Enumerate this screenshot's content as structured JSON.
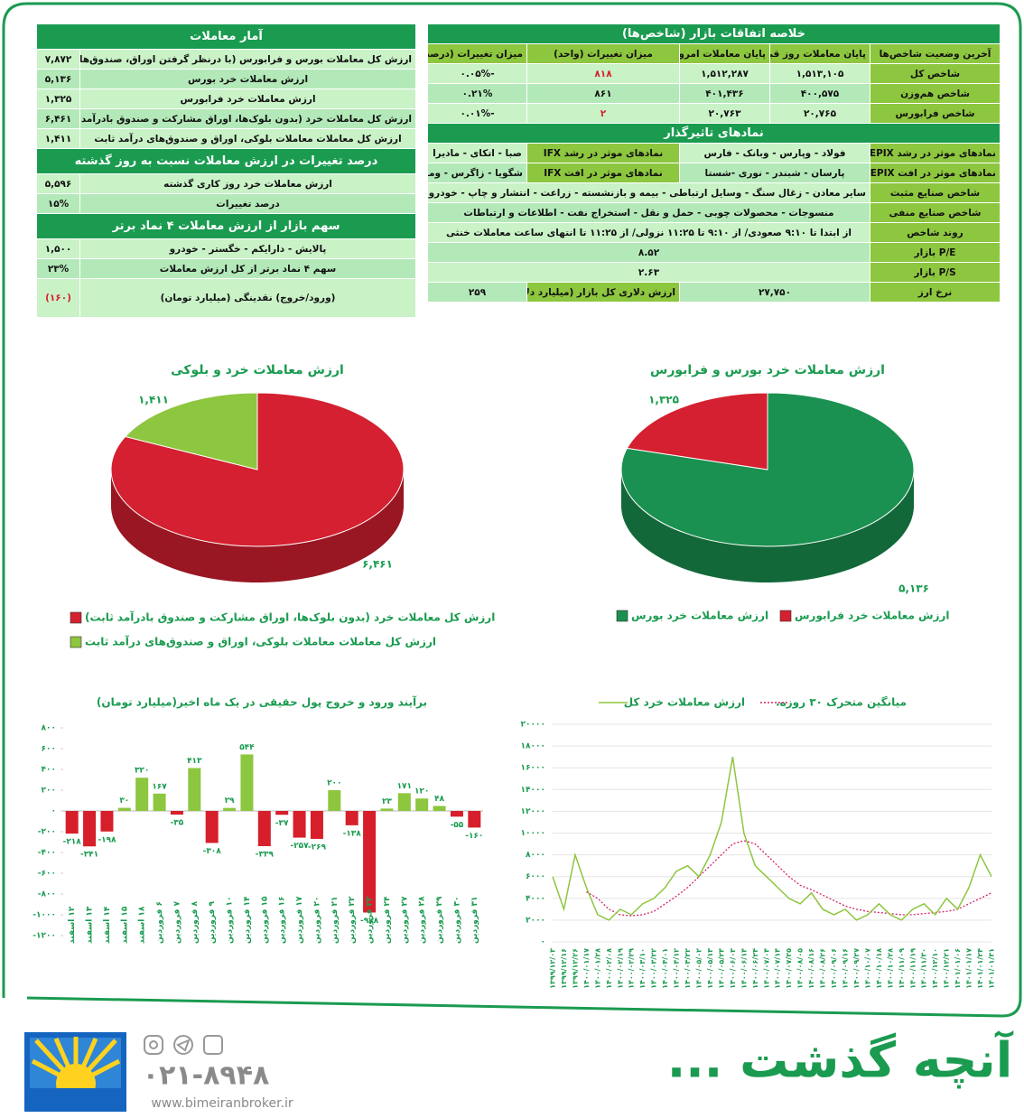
{
  "summary_table": {
    "title": "خلاصه اتفاقات بازار (شاخص‌ها)",
    "header": [
      "آخرین وضعیت شاخص‌ها",
      "پایان معاملات روز قبل",
      "پایان معاملات امروز",
      "میزان تغییرات (واحد)",
      "میزان تغییرات (درصد)"
    ],
    "rows": [
      [
        "شاخص کل",
        "۱,۵۱۳,۱۰۵",
        "۱,۵۱۲,۲۸۷",
        "۸۱۸",
        "-۰.۰۵%"
      ],
      [
        "شاخص هم‌وزن",
        "۴۰۰,۵۷۵",
        "۴۰۱,۴۳۶",
        "۸۶۱",
        "۰.۲۱%"
      ],
      [
        "شاخص فرابورس",
        "۲۰,۷۶۵",
        "۲۰,۷۶۳",
        "۲",
        "-۰.۰۱%"
      ]
    ]
  },
  "influential": {
    "title": "نمادهای تاثیرگذار",
    "rows": [
      [
        "نمادهای موثر در رشد TEPIX",
        "فولاد - وپارس - وبانک - فارس",
        "نمادهای موثر در رشد IFX",
        "صبا - اتکای - مادیرا"
      ],
      [
        "نمادهای موثر در افت TEPIX",
        "پارسان - شبندر - نوری -شستا",
        "نمادهای موثر در افت IFX",
        "شگویا - زاگرس - ومهان"
      ],
      [
        "شاخص صنایع مثبت",
        "سایر معادن - زغال سنگ - وسایل ارتباطی - بیمه و بازنشسته - زراعت - انتشار و چاپ - خودرو"
      ],
      [
        "شاخص صنایع منفی",
        "منسوجات - محصولات چوبی - حمل و نقل - استخراج نفت - اطلاعات و ارتباطات"
      ],
      [
        "روند شاخص",
        "از ابتدا تا ۹:۱۰ صعودی/ از ۹:۱۰ تا ۱۱:۲۵ نزولی/ از ۱۱:۲۵ تا انتهای ساعت معاملات خنثی"
      ],
      [
        "P/E بازار",
        "۸.۵۲"
      ],
      [
        "P/S بازار",
        "۲.۶۳"
      ],
      [
        "نرخ ارز",
        "۲۷,۷۵۰",
        "ارزش دلاری کل بازار (میلیارد دلار)",
        "۲۵۹"
      ]
    ]
  },
  "stats_table": {
    "title": "آمار معاملات",
    "rows": [
      [
        "ارزش کل معاملات بورس و فرابورس (با درنظر گرفتن اوراق، صندوق‌ها و بلوک‌ها)",
        "۷,۸۷۲"
      ],
      [
        "ارزش معاملات خرد بورس",
        "۵,۱۳۶"
      ],
      [
        "ارزش معاملات خرد فرابورس",
        "۱,۳۲۵"
      ],
      [
        "ارزش کل معاملات خرد (بدون بلوک‌ها، اوراق مشارکت و صندوق بادرآمد ثابت)",
        "۶,۴۶۱"
      ],
      [
        "ارزش کل معاملات معاملات بلوکی، اوراق و صندوق‌های درآمد ثابت",
        "۱,۴۱۱"
      ]
    ]
  },
  "change_section": {
    "title": "درصد تغییرات در ارزش معاملات نسبت به روز گذشته",
    "rows": [
      [
        "ارزش معاملات خرد روز کاری گذشته",
        "۵,۵۹۶"
      ],
      [
        "درصد تغییرات",
        "۱۵%"
      ]
    ]
  },
  "top4_section": {
    "title": "سهم بازار از ارزش معاملات ۴ نماد برتر",
    "rows": [
      [
        "پالایش - دارایکم - خگستر - خودرو",
        "۱,۵۰۰"
      ],
      [
        "سهم ۴ نماد برتر از کل ارزش معاملات",
        "۲۳%"
      ],
      [
        "(ورود/خروج) نقدینگی (میلیارد تومان)",
        "(۱۶۰)"
      ]
    ]
  },
  "footer": {
    "title": "آنچه گذشت ...",
    "phone": "۰۲۱-۸۹۴۸",
    "website": "www.bimeiranbroker.ir"
  },
  "chart_data": [
    {
      "type": "pie",
      "title": "ارزش معاملات خرد بورس و فرابورس",
      "series": [
        {
          "name": "ارزش معاملات خرد بورس",
          "color": "#1a9150",
          "values": [
            5136
          ],
          "value_labels": [
            "۵,۱۳۶"
          ]
        },
        {
          "name": "ارزش معاملات خرد فرابورس",
          "color": "#d42030",
          "values": [
            1325
          ],
          "value_labels": [
            "۱,۳۲۵"
          ]
        }
      ]
    },
    {
      "type": "pie",
      "title": "ارزش معاملات خرد و بلوکی",
      "series": [
        {
          "name": "ارزش کل معاملات خرد (بدون بلوک‌ها، اوراق مشارکت و صندوق بادرآمد ثابت)",
          "color": "#d42030",
          "values": [
            6461
          ],
          "value_labels": [
            "۶,۴۶۱"
          ]
        },
        {
          "name": "ارزش کل معاملات معاملات بلوکی، اوراق و صندوق‌های درآمد ثابت",
          "color": "#8dc63f",
          "values": [
            1411
          ],
          "value_labels": [
            "۱,۴۱۱"
          ]
        }
      ]
    },
    {
      "type": "bar",
      "title": "برآیند ورود و خروج پول حقیقی در یک ماه اخیر(میلیارد تومان)",
      "categories": [
        "۱۲ اسفند",
        "۱۳ اسفند",
        "۱۴ اسفند",
        "۱۵ اسفند",
        "۱۸ اسفند",
        "۶ فروردین",
        "۷ فروردین",
        "۸ فروردین",
        "۹ فروردین",
        "۱۰ فروردین",
        "۱۴ فروردین",
        "۱۵ فروردین",
        "۱۶ فروردین",
        "۱۷ فروردین",
        "۲۰ فروردین",
        "۲۱ فروردین",
        "۲۲ فروردین",
        "۲۳ فروردین",
        "۲۴ فروردین",
        "۲۷ فروردین",
        "۲۸ فروردین",
        "۲۹ فروردین",
        "۳۰ فروردین",
        "۳۱ فروردین"
      ],
      "values": [
        -218,
        -341,
        -198,
        30,
        320,
        167,
        -35,
        413,
        -308,
        29,
        544,
        -339,
        -37,
        -257,
        -269,
        200,
        -138,
        -978,
        23,
        171,
        120,
        48,
        -55,
        -160
      ],
      "value_labels": [
        "-۲۱۸",
        "-۳۴۱",
        "-۱۹۸",
        "۳۰",
        "۳۲۰",
        "۱۶۷",
        "-۳۵",
        "۴۱۳",
        "-۳۰۸",
        "۲۹",
        "۵۴۴",
        "-۳۳۹",
        "-۳۷",
        "-۲۵۷",
        "-۲۶۹",
        "۲۰۰",
        "-۱۳۸",
        "-۹۷۸",
        "۲۳",
        "۱۷۱",
        "۱۲۰",
        "۴۸",
        "-۵۵",
        "-۱۶۰"
      ],
      "color": "#8dc63f",
      "negative_color": "#d71f2b",
      "ylim": [
        -1200,
        800
      ],
      "yticks": [
        {
          "value": 800,
          "label": "۸۰۰"
        },
        {
          "value": 600,
          "label": "۶۰۰"
        },
        {
          "value": 400,
          "label": "۴۰۰"
        },
        {
          "value": 200,
          "label": "۲۰۰"
        },
        {
          "value": 0,
          "label": "۰"
        },
        {
          "value": -200,
          "label": "-۲۰۰"
        },
        {
          "value": -400,
          "label": "-۴۰۰"
        },
        {
          "value": -600,
          "label": "-۶۰۰"
        },
        {
          "value": -800,
          "label": "-۸۰۰"
        },
        {
          "value": -1000,
          "label": "-۱۰۰۰"
        },
        {
          "value": -1200,
          "label": "-۱۲۰۰"
        }
      ],
      "grid": false
    },
    {
      "type": "line",
      "categories": [
        "۱۳۹۹/۱۲/۰۳",
        "۱۳۹۹/۱۲/۱۶",
        "۱۳۹۹/۱۲/۲۶",
        "۱۴۰۰/۰۱/۱۷",
        "۱۴۰۰/۰۱/۲۸",
        "۱۴۰۰/۰۲/۰۸",
        "۱۴۰۰/۰۲/۱۹",
        "۱۴۰۰/۰۲/۲۹",
        "۱۴۰۰/۰۳/۱۰",
        "۱۴۰۰/۰۳/۲۲",
        "۱۴۰۰/۰۴/۰۱",
        "۱۴۰۰/۰۴/۱۲",
        "۱۴۰۰/۰۴/۲۲",
        "۱۴۰۰/۰۵/۰۲",
        "۱۴۰۰/۰۵/۱۳",
        "۱۴۰۰/۰۵/۲۴",
        "۱۴۰۰/۰۶/۰۳",
        "۱۴۰۰/۰۶/۱۴",
        "۱۴۰۰/۰۶/۲۴",
        "۱۴۰۰/۰۷/۰۴",
        "۱۴۰۰/۰۷/۱۴",
        "۱۴۰۰/۰۷/۲۵",
        "۱۴۰۰/۰۸/۰۵",
        "۱۴۰۰/۰۸/۱۶",
        "۱۴۰۰/۰۸/۲۶",
        "۱۴۰۰/۰۹/۰۶",
        "۱۴۰۰/۰۹/۱۶",
        "۱۴۰۰/۰۹/۲۷",
        "۱۴۰۰/۱۰/۰۷",
        "۱۴۰۰/۱۰/۱۸",
        "۱۴۰۰/۱۰/۲۸",
        "۱۴۰۰/۱۱/۰۹",
        "۱۴۰۰/۱۱/۱۹",
        "۱۴۰۰/۱۱/۳۰",
        "۱۴۰۰/۱۲/۱۰",
        "۱۴۰۰/۱۲/۲۱",
        "۱۴۰۱/۰۱/۰۶",
        "۱۴۰۱/۰۱/۱۷",
        "۱۴۰۱/۰۱/۲۴",
        "۱۴۰۱/۰۱/۳۱"
      ],
      "series": [
        {
          "name": "میانگین متحرک ۳۰ روزه.",
          "color": "#d6246e",
          "dashed": true,
          "values": [
            null,
            null,
            null,
            4600,
            4000,
            3000,
            2500,
            2400,
            2500,
            2800,
            3500,
            4200,
            5000,
            6000,
            7000,
            8000,
            9000,
            9300,
            9000,
            8000,
            7000,
            6000,
            5200,
            4800,
            4300,
            3800,
            3300,
            3000,
            2800,
            2700,
            2600,
            2500,
            2500,
            2600,
            2700,
            2800,
            3000,
            3500,
            4000,
            4500
          ]
        },
        {
          "name": "ارزش معاملات خرد کل",
          "color": "#8dc63f",
          "dashed": false,
          "values": [
            6000,
            3000,
            8000,
            5000,
            2500,
            2000,
            3000,
            2500,
            3500,
            4000,
            5000,
            6500,
            7000,
            6000,
            8000,
            11000,
            17000,
            10000,
            7000,
            6000,
            5000,
            4000,
            3500,
            4500,
            3000,
            2500,
            3000,
            2000,
            2500,
            3500,
            2500,
            2000,
            3000,
            3500,
            2500,
            4000,
            3000,
            5000,
            8000,
            6000
          ]
        }
      ],
      "ylim": [
        0,
        20000
      ],
      "yticks": [
        {
          "value": 0,
          "label": "۰"
        },
        {
          "value": 2000,
          "label": "۲۰۰۰"
        },
        {
          "value": 4000,
          "label": "۴۰۰۰"
        },
        {
          "value": 6000,
          "label": "۶۰۰۰"
        },
        {
          "value": 8000,
          "label": "۸۰۰۰"
        },
        {
          "value": 10000,
          "label": "۱۰۰۰۰"
        },
        {
          "value": 12000,
          "label": "۱۲۰۰۰"
        },
        {
          "value": 14000,
          "label": "۱۴۰۰۰"
        },
        {
          "value": 16000,
          "label": "۱۶۰۰۰"
        },
        {
          "value": 18000,
          "label": "۱۸۰۰۰"
        },
        {
          "value": 20000,
          "label": "۲۰۰۰۰"
        }
      ],
      "grid": true
    }
  ]
}
